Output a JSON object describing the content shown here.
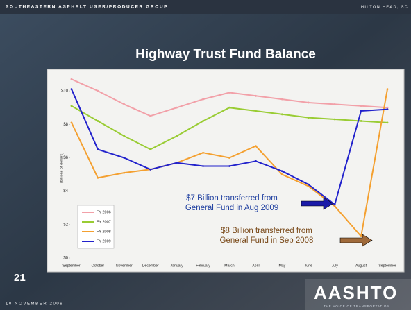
{
  "header": {
    "left": "SOUTHEASTERN ASPHALT USER/PRODUCER GROUP",
    "right": "HILTON HEAD, SC"
  },
  "slide_number": "21",
  "footer": "10 NOVEMBER 2009",
  "logo": {
    "name": "AASHTO",
    "tagline": "THE VOICE OF TRANSPORTATION"
  },
  "chart_data": {
    "type": "line",
    "title": "Highway Trust Fund Balance",
    "ylabel": "(billions of dollars)",
    "categories": [
      "September",
      "October",
      "November",
      "December",
      "January",
      "February",
      "March",
      "April",
      "May",
      "June",
      "July",
      "August",
      "September"
    ],
    "series": [
      {
        "name": "FY 2006",
        "color": "#f2a0a8",
        "values": [
          10.7,
          10.0,
          9.2,
          8.5,
          9.0,
          9.5,
          9.9,
          9.7,
          9.5,
          9.3,
          9.2,
          9.1,
          9.0
        ]
      },
      {
        "name": "FY 2007",
        "color": "#99cc33",
        "values": [
          9.1,
          8.2,
          7.3,
          6.5,
          7.3,
          8.2,
          9.0,
          8.8,
          8.6,
          8.4,
          8.3,
          8.2,
          8.1
        ]
      },
      {
        "name": "FY 2008",
        "color": "#f4a030",
        "values": [
          8.1,
          4.8,
          5.1,
          5.3,
          5.7,
          6.3,
          6.0,
          6.7,
          5.0,
          4.3,
          3.1,
          1.3,
          10.1
        ]
      },
      {
        "name": "FY 2009",
        "color": "#2222cc",
        "values": [
          10.1,
          6.5,
          6.0,
          5.3,
          5.7,
          5.5,
          5.5,
          5.8,
          5.2,
          4.4,
          3.2,
          8.8,
          8.9
        ]
      }
    ],
    "ylim": [
      0,
      11
    ],
    "yticks": [
      {
        "value": 0,
        "label": "$0"
      },
      {
        "value": 2,
        "label": "$2"
      },
      {
        "value": 4,
        "label": "$4"
      },
      {
        "value": 6,
        "label": "$6"
      },
      {
        "value": 8,
        "label": "$8"
      },
      {
        "value": 10,
        "label": "$10"
      }
    ],
    "annotations": [
      [
        "$7 Billion transferred from",
        "General Fund in Aug 2009"
      ],
      [
        "$8 Billion transferred from",
        "General Fund in Sep 2008"
      ]
    ]
  }
}
